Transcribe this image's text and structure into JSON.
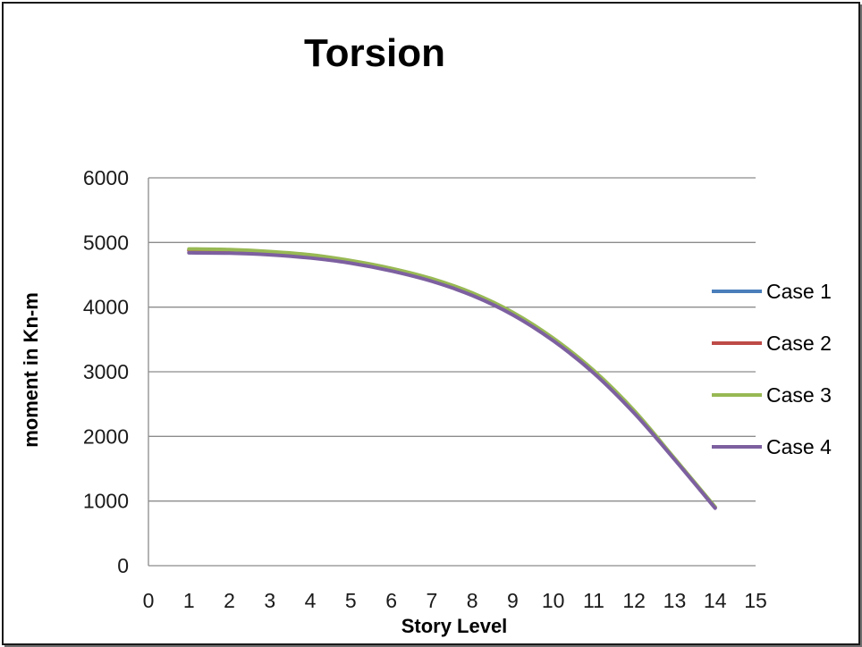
{
  "chart_data": {
    "type": "line",
    "title": "Torsion",
    "xlabel": "Story Level",
    "ylabel": "moment in Kn-m",
    "xlim": [
      0,
      15
    ],
    "ylim": [
      0,
      6000
    ],
    "x_ticks": [
      0,
      1,
      2,
      3,
      4,
      5,
      6,
      7,
      8,
      9,
      10,
      11,
      12,
      13,
      14,
      15
    ],
    "y_ticks": [
      0,
      1000,
      2000,
      3000,
      4000,
      5000,
      6000
    ],
    "grid": "horizontal",
    "legend_position": "right",
    "x": [
      1,
      2,
      3,
      4,
      5,
      6,
      7,
      8,
      9,
      10,
      11,
      12,
      13,
      14
    ],
    "series": [
      {
        "name": "Case 1",
        "color": "#4a7ebb",
        "values": [
          4880,
          4870,
          4840,
          4790,
          4700,
          4580,
          4420,
          4200,
          3900,
          3500,
          3000,
          2380,
          1650,
          900
        ]
      },
      {
        "name": "Case 2",
        "color": "#be4b48",
        "values": [
          4880,
          4870,
          4840,
          4790,
          4700,
          4580,
          4420,
          4200,
          3900,
          3500,
          3000,
          2380,
          1650,
          900
        ]
      },
      {
        "name": "Case 3",
        "color": "#98b954",
        "values": [
          4900,
          4890,
          4860,
          4810,
          4720,
          4600,
          4440,
          4220,
          3920,
          3520,
          3020,
          2400,
          1660,
          910
        ]
      },
      {
        "name": "Case 4",
        "color": "#7d60a0",
        "values": [
          4840,
          4835,
          4810,
          4760,
          4680,
          4560,
          4400,
          4180,
          3880,
          3480,
          2980,
          2360,
          1640,
          890
        ]
      }
    ]
  }
}
